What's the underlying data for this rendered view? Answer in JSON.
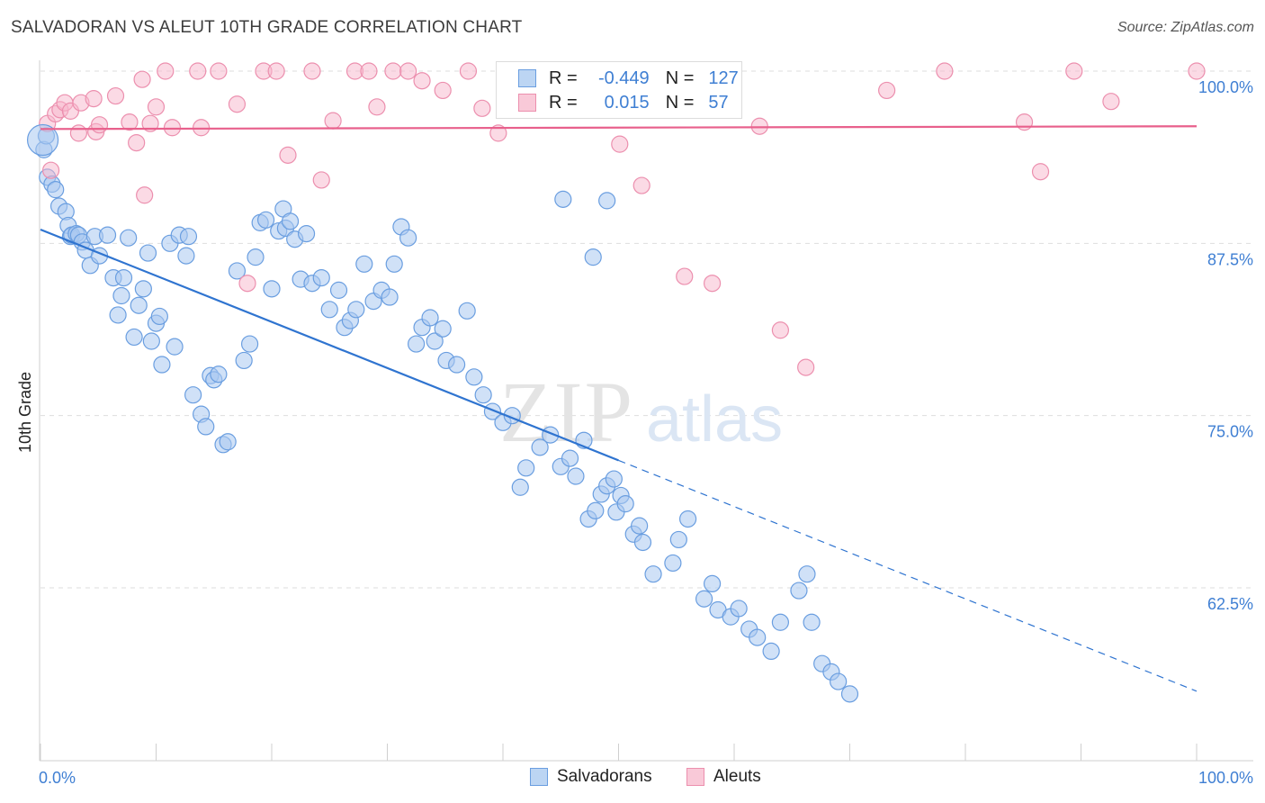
{
  "title": "SALVADORAN VS ALEUT 10TH GRADE CORRELATION CHART",
  "source": "Source: ZipAtlas.com",
  "watermark": {
    "zip": "ZIP",
    "atlas": "atlas"
  },
  "colors": {
    "blue": "#3f7fd3",
    "blue_fill": "#a9c9f0",
    "pink": "#e8608c",
    "pink_fill": "#f7b6cb"
  },
  "legend": {
    "rows": [
      {
        "r_label": "R =",
        "r_value": "-0.449",
        "n_label": "N =",
        "n_value": "127"
      },
      {
        "r_label": "R =",
        "r_value": "0.015",
        "n_label": "N =",
        "n_value": "57"
      }
    ]
  },
  "chart_data": {
    "type": "scatter",
    "title": "SALVADORAN VS ALEUT 10TH GRADE CORRELATION CHART",
    "xlabel": "",
    "ylabel": "10th Grade",
    "xlim": [
      0,
      100
    ],
    "ylim": [
      50,
      101.5
    ],
    "x_tick_labels": [
      "0.0%",
      "100.0%"
    ],
    "y_ticks": [
      62.5,
      75.0,
      87.5,
      100.0
    ],
    "y_tick_labels": [
      "62.5%",
      "75.0%",
      "87.5%",
      "100.0%"
    ],
    "series": [
      {
        "name": "Salvadorans",
        "color": "#3f7fd3",
        "points": [
          [
            0.3,
            94.3
          ],
          [
            0.5,
            95.3
          ],
          [
            0.6,
            92.3
          ],
          [
            1.0,
            91.8
          ],
          [
            1.3,
            91.4
          ],
          [
            1.6,
            90.2
          ],
          [
            2.2,
            89.8
          ],
          [
            2.4,
            88.8
          ],
          [
            2.6,
            88.0
          ],
          [
            2.7,
            88.1
          ],
          [
            3.1,
            88.2
          ],
          [
            3.3,
            88.1
          ],
          [
            3.6,
            87.6
          ],
          [
            3.9,
            87.0
          ],
          [
            4.3,
            85.9
          ],
          [
            4.7,
            88.0
          ],
          [
            5.1,
            86.6
          ],
          [
            5.8,
            88.1
          ],
          [
            6.3,
            85.0
          ],
          [
            6.7,
            82.3
          ],
          [
            7.0,
            83.7
          ],
          [
            7.2,
            85.0
          ],
          [
            7.6,
            87.9
          ],
          [
            8.1,
            80.7
          ],
          [
            8.5,
            83.0
          ],
          [
            8.9,
            84.2
          ],
          [
            9.3,
            86.8
          ],
          [
            9.6,
            80.4
          ],
          [
            10.0,
            81.7
          ],
          [
            10.3,
            82.2
          ],
          [
            10.5,
            78.7
          ],
          [
            11.2,
            87.5
          ],
          [
            11.6,
            80.0
          ],
          [
            12.0,
            88.1
          ],
          [
            12.6,
            86.6
          ],
          [
            12.8,
            88.0
          ],
          [
            13.2,
            76.5
          ],
          [
            13.9,
            75.1
          ],
          [
            14.3,
            74.2
          ],
          [
            14.7,
            77.9
          ],
          [
            15.0,
            77.6
          ],
          [
            15.4,
            78.0
          ],
          [
            15.8,
            72.9
          ],
          [
            16.2,
            73.1
          ],
          [
            17.0,
            85.5
          ],
          [
            17.6,
            79.0
          ],
          [
            18.1,
            80.2
          ],
          [
            18.6,
            86.5
          ],
          [
            19.0,
            89.0
          ],
          [
            19.5,
            89.2
          ],
          [
            20.0,
            84.2
          ],
          [
            20.6,
            88.4
          ],
          [
            21.0,
            90.0
          ],
          [
            21.2,
            88.6
          ],
          [
            21.6,
            89.1
          ],
          [
            22.0,
            87.8
          ],
          [
            22.5,
            84.9
          ],
          [
            23.0,
            88.2
          ],
          [
            23.5,
            84.6
          ],
          [
            24.3,
            85.0
          ],
          [
            25.0,
            82.7
          ],
          [
            25.8,
            84.1
          ],
          [
            26.3,
            81.4
          ],
          [
            26.8,
            81.9
          ],
          [
            27.3,
            82.7
          ],
          [
            28.0,
            86.0
          ],
          [
            28.8,
            83.3
          ],
          [
            29.5,
            84.1
          ],
          [
            30.2,
            83.6
          ],
          [
            30.6,
            86.0
          ],
          [
            31.2,
            88.7
          ],
          [
            31.8,
            87.9
          ],
          [
            32.5,
            80.2
          ],
          [
            33.0,
            81.4
          ],
          [
            33.7,
            82.1
          ],
          [
            34.1,
            80.4
          ],
          [
            34.8,
            81.3
          ],
          [
            35.1,
            79.0
          ],
          [
            36.0,
            78.7
          ],
          [
            36.9,
            82.6
          ],
          [
            37.5,
            77.8
          ],
          [
            38.3,
            76.5
          ],
          [
            39.1,
            75.3
          ],
          [
            40.0,
            74.5
          ],
          [
            40.8,
            75.0
          ],
          [
            41.5,
            69.8
          ],
          [
            42.0,
            71.2
          ],
          [
            43.2,
            72.7
          ],
          [
            44.1,
            73.6
          ],
          [
            45.0,
            71.3
          ],
          [
            45.8,
            71.9
          ],
          [
            46.3,
            70.6
          ],
          [
            47.0,
            73.2
          ],
          [
            47.4,
            67.5
          ],
          [
            48.0,
            68.1
          ],
          [
            48.5,
            69.3
          ],
          [
            49.0,
            69.9
          ],
          [
            49.6,
            70.4
          ],
          [
            49.8,
            68.0
          ],
          [
            50.2,
            69.2
          ],
          [
            50.6,
            68.6
          ],
          [
            51.3,
            66.4
          ],
          [
            51.8,
            67.0
          ],
          [
            52.1,
            65.8
          ],
          [
            53.0,
            63.5
          ],
          [
            54.7,
            64.3
          ],
          [
            55.2,
            66.0
          ],
          [
            56.0,
            67.5
          ],
          [
            57.4,
            61.7
          ],
          [
            58.1,
            62.8
          ],
          [
            58.6,
            60.9
          ],
          [
            59.7,
            60.4
          ],
          [
            60.4,
            61.0
          ],
          [
            61.3,
            59.5
          ],
          [
            62.0,
            58.9
          ],
          [
            63.2,
            57.9
          ],
          [
            64.0,
            60.0
          ],
          [
            65.6,
            62.3
          ],
          [
            66.3,
            63.5
          ],
          [
            66.7,
            60.0
          ],
          [
            67.6,
            57.0
          ],
          [
            68.4,
            56.4
          ],
          [
            69.0,
            55.7
          ],
          [
            70.0,
            54.8
          ],
          [
            45.2,
            90.7
          ],
          [
            47.8,
            86.5
          ],
          [
            49.0,
            90.6
          ]
        ]
      },
      {
        "name": "Aleuts",
        "color": "#e8608c",
        "points": [
          [
            0.6,
            96.2
          ],
          [
            0.9,
            92.8
          ],
          [
            1.3,
            96.9
          ],
          [
            1.7,
            97.2
          ],
          [
            2.1,
            97.7
          ],
          [
            2.6,
            97.1
          ],
          [
            3.3,
            95.5
          ],
          [
            3.5,
            97.7
          ],
          [
            4.6,
            98.0
          ],
          [
            4.8,
            95.6
          ],
          [
            5.1,
            96.1
          ],
          [
            6.5,
            98.2
          ],
          [
            7.7,
            96.3
          ],
          [
            8.3,
            94.8
          ],
          [
            8.8,
            99.4
          ],
          [
            9.0,
            91.0
          ],
          [
            9.5,
            96.2
          ],
          [
            10.0,
            97.4
          ],
          [
            10.8,
            100.0
          ],
          [
            11.4,
            95.9
          ],
          [
            13.6,
            100.0
          ],
          [
            13.9,
            95.9
          ],
          [
            15.4,
            100.0
          ],
          [
            17.0,
            97.6
          ],
          [
            17.9,
            84.6
          ],
          [
            19.3,
            100.0
          ],
          [
            20.4,
            100.0
          ],
          [
            21.4,
            93.9
          ],
          [
            23.5,
            100.0
          ],
          [
            24.3,
            92.1
          ],
          [
            25.3,
            96.4
          ],
          [
            27.2,
            100.0
          ],
          [
            28.4,
            100.0
          ],
          [
            29.1,
            97.4
          ],
          [
            30.5,
            100.0
          ],
          [
            31.8,
            100.0
          ],
          [
            33.0,
            99.3
          ],
          [
            34.8,
            98.6
          ],
          [
            37.0,
            100.0
          ],
          [
            38.2,
            97.3
          ],
          [
            39.6,
            95.5
          ],
          [
            43.1,
            98.0
          ],
          [
            48.0,
            100.0
          ],
          [
            50.1,
            94.7
          ],
          [
            52.0,
            91.7
          ],
          [
            55.7,
            85.1
          ],
          [
            58.1,
            84.6
          ],
          [
            62.2,
            96.0
          ],
          [
            64.0,
            81.2
          ],
          [
            66.2,
            78.5
          ],
          [
            73.2,
            98.6
          ],
          [
            78.2,
            100.0
          ],
          [
            85.1,
            96.3
          ],
          [
            86.5,
            92.7
          ],
          [
            89.4,
            100.0
          ],
          [
            92.6,
            97.8
          ],
          [
            100.0,
            100.0
          ]
        ]
      }
    ],
    "trend_lines": [
      {
        "series": "Salvadorans",
        "x_start": 0,
        "y_start": 88.5,
        "x_solid_end": 50,
        "x_end": 100,
        "y_end": 55.0
      },
      {
        "series": "Aleuts",
        "x_start": 0,
        "y_start": 95.8,
        "x_end": 100,
        "y_end": 96.0
      }
    ]
  },
  "bottom_legend": [
    {
      "label": "Salvadorans"
    },
    {
      "label": "Aleuts"
    }
  ]
}
